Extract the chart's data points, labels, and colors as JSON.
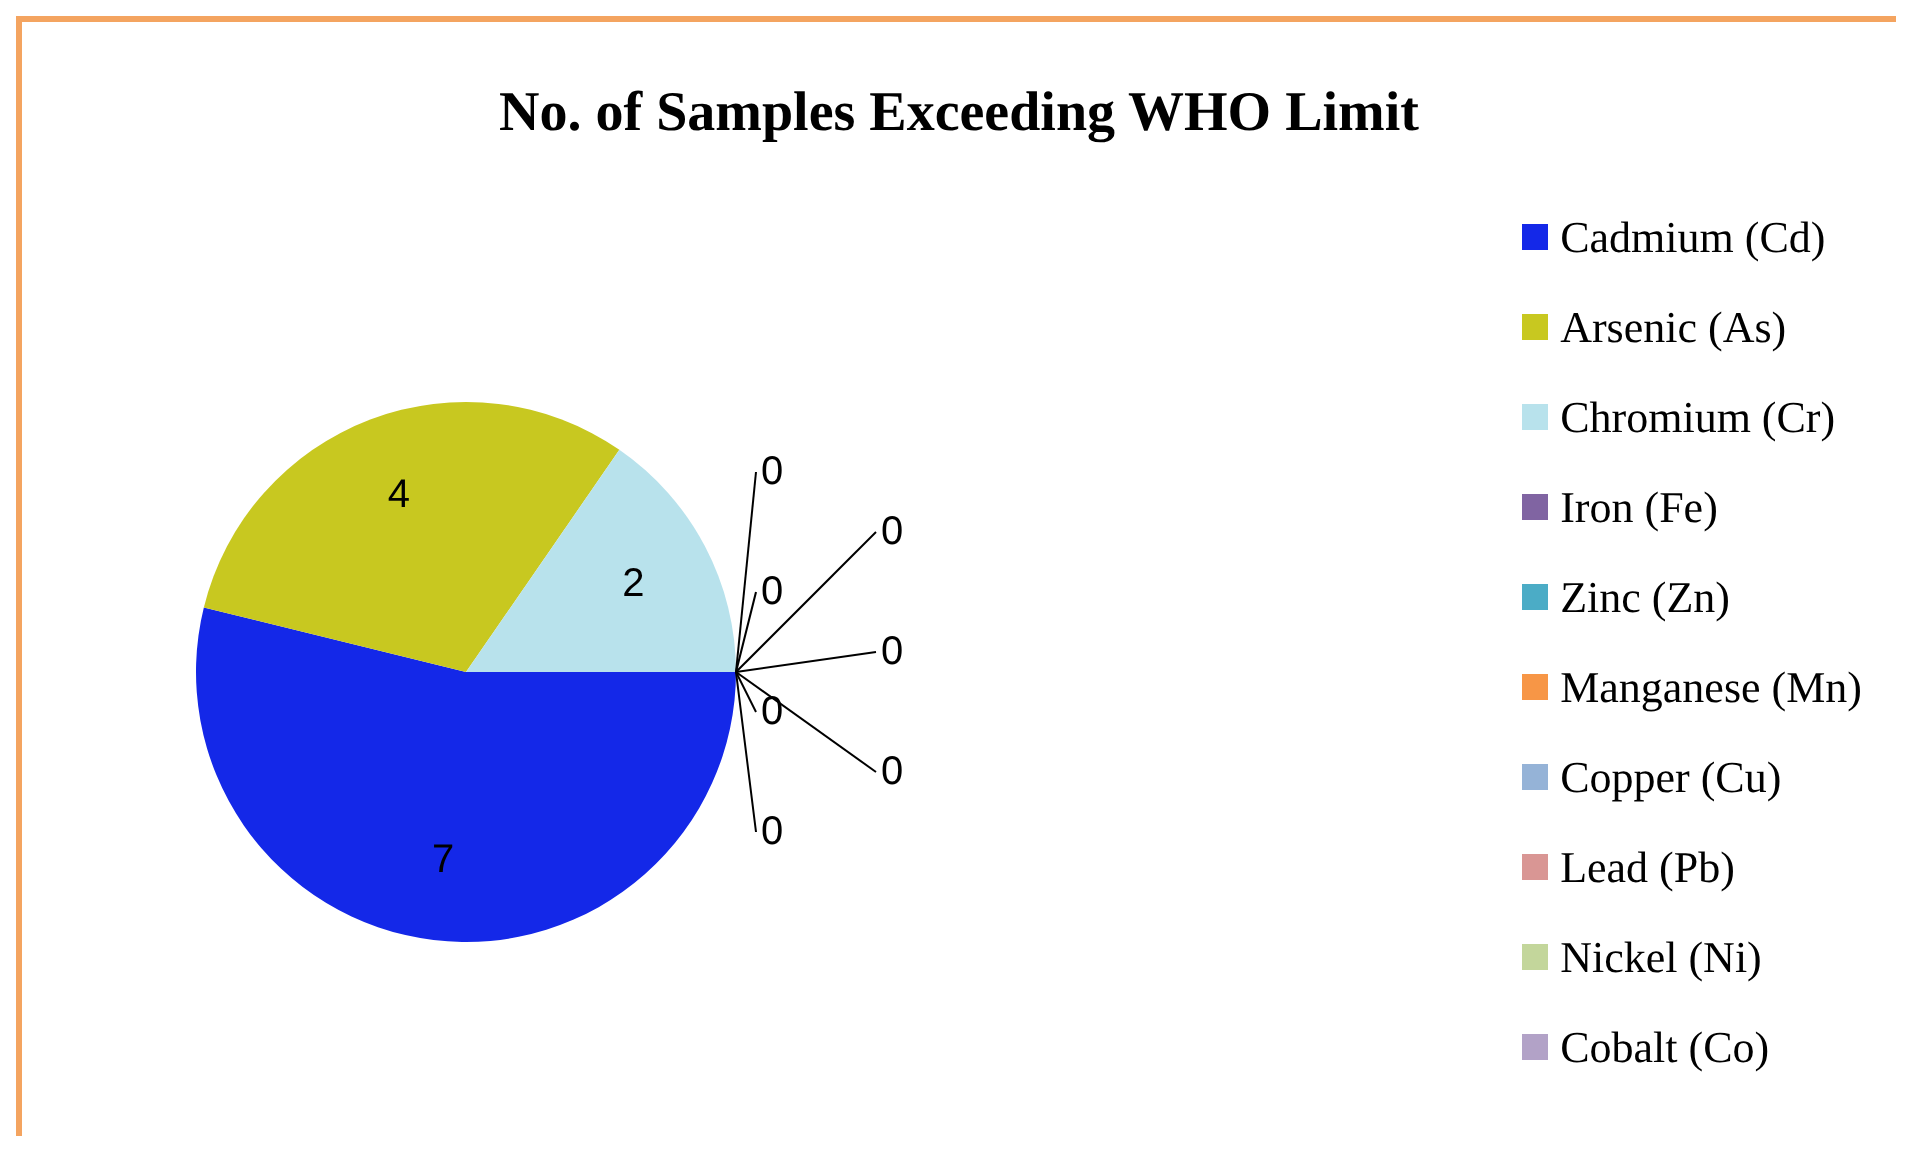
{
  "chart_data": {
    "type": "pie",
    "title": "No. of Samples Exceeding WHO Limit",
    "categories": [
      "Cadmium (Cd)",
      "Arsenic (As)",
      "Chromium (Cr)",
      "Iron (Fe)",
      "Zinc (Zn)",
      "Manganese (Mn)",
      "Copper (Cu)",
      "Lead (Pb)",
      "Nickel (Ni)",
      "Cobalt (Co)"
    ],
    "values": [
      7,
      4,
      2,
      0,
      0,
      0,
      0,
      0,
      0,
      0
    ],
    "colors": [
      "#1428e8",
      "#c8c820",
      "#b8e2ec",
      "#8064a2",
      "#4bacc6",
      "#f79646",
      "#95b3d7",
      "#d99694",
      "#c3d69b",
      "#b2a2c7"
    ],
    "value_labels": [
      "7",
      "4",
      "2",
      "0",
      "0",
      "0",
      "0",
      "0",
      "0",
      "0"
    ],
    "legend": "right"
  }
}
